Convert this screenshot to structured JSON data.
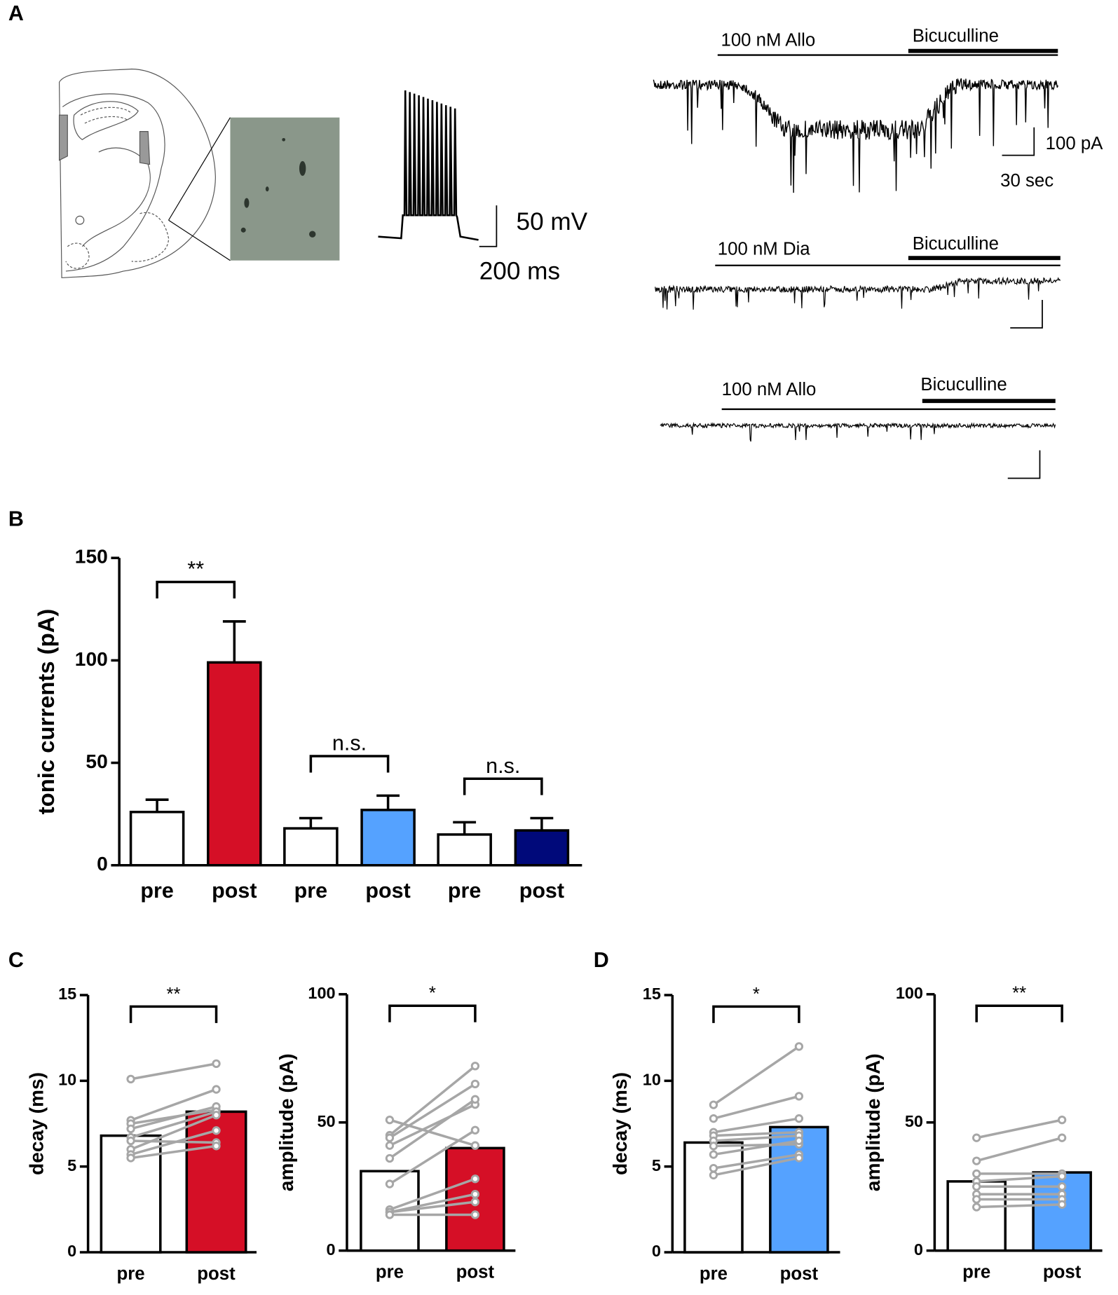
{
  "panel_a": {
    "label": "A",
    "traces": [
      {
        "drug": "100 nM Allo",
        "antagonist": "Bicuculline"
      },
      {
        "drug": "100 nM Dia",
        "antagonist": "Bicuculline"
      },
      {
        "drug": "100 nM Allo",
        "antagonist": "Bicuculline"
      }
    ],
    "current_scale": "100 pA",
    "time_scale": "30 sec",
    "voltage_scale": "50 mV",
    "ap_time_scale": "200 ms"
  },
  "chart_data": [
    {
      "type": "bar",
      "panel": "B",
      "ylabel": "tonic currents (pA)",
      "categories": [
        "pre",
        "post",
        "pre",
        "post",
        "pre",
        "post"
      ],
      "values": [
        26,
        99,
        18,
        27,
        15,
        17
      ],
      "errors": [
        6,
        20,
        5,
        7,
        6,
        6
      ],
      "colors": [
        "#ffffff",
        "#d50f26",
        "#ffffff",
        "#55a2ff",
        "#ffffff",
        "#00097a"
      ],
      "ylim": [
        0,
        150
      ],
      "yticks": [
        0,
        50,
        100,
        150
      ],
      "annotations": [
        "**",
        "n.s.",
        "n.s."
      ]
    },
    {
      "type": "paired_bar",
      "panel": "C",
      "ylabel": "decay (ms)",
      "categories": [
        "pre",
        "post"
      ],
      "values": [
        6.8,
        8.2
      ],
      "colors": [
        "#ffffff",
        "#d50f26"
      ],
      "ylim": [
        0,
        15
      ],
      "yticks": [
        0,
        5,
        10,
        15
      ],
      "points": [
        [
          10.1,
          7.7,
          7.5,
          7.2,
          6.7,
          6.5,
          6.0,
          5.7,
          5.5
        ],
        [
          11.0,
          9.5,
          8.3,
          8.5,
          8.2,
          6.4,
          8.0,
          7.1,
          6.2
        ]
      ],
      "annotations": [
        "**"
      ]
    },
    {
      "type": "paired_bar",
      "ylabel": "amplitude (pA)",
      "categories": [
        "pre",
        "post"
      ],
      "values": [
        31,
        40
      ],
      "colors": [
        "#ffffff",
        "#d50f26"
      ],
      "ylim": [
        0,
        100
      ],
      "yticks": [
        0,
        50,
        100
      ],
      "points": [
        [
          51,
          45,
          44,
          41,
          36,
          26,
          16,
          15,
          15,
          14
        ],
        [
          41,
          72,
          65,
          57,
          59,
          47,
          28,
          22,
          19,
          14
        ]
      ],
      "annotations": [
        "*"
      ]
    },
    {
      "type": "paired_bar",
      "panel": "D",
      "ylabel": "decay (ms)",
      "categories": [
        "pre",
        "post"
      ],
      "values": [
        6.4,
        7.3
      ],
      "colors": [
        "#ffffff",
        "#55a2ff"
      ],
      "ylim": [
        0,
        15
      ],
      "yticks": [
        0,
        5,
        10,
        15
      ],
      "points": [
        [
          8.6,
          7.8,
          7.0,
          6.8,
          6.5,
          6.2,
          5.7,
          4.9,
          4.5
        ],
        [
          12.0,
          9.1,
          7.8,
          7.0,
          6.8,
          6.3,
          6.5,
          5.7,
          5.5
        ]
      ],
      "annotations": [
        "*"
      ]
    },
    {
      "type": "paired_bar",
      "ylabel": "amplitude (pA)",
      "categories": [
        "pre",
        "post"
      ],
      "values": [
        27,
        30.5
      ],
      "colors": [
        "#ffffff",
        "#55a2ff"
      ],
      "ylim": [
        0,
        100
      ],
      "yticks": [
        0,
        50,
        100
      ],
      "points": [
        [
          44,
          35,
          30,
          27,
          25,
          22,
          20,
          17
        ],
        [
          51,
          44,
          30,
          29,
          25,
          22,
          20,
          18
        ]
      ],
      "annotations": [
        "**"
      ]
    }
  ]
}
